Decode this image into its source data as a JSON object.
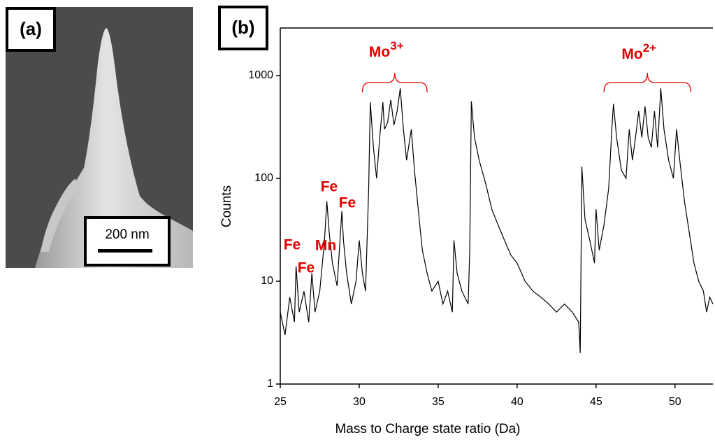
{
  "panel_a": {
    "label": "(a)",
    "scale_bar": "200 nm"
  },
  "chart_data": {
    "type": "line",
    "panel_label": "(b)",
    "x_label": "Mass to Charge state ratio (Da)",
    "y_label": "Counts",
    "log_y": true,
    "xlim": [
      25,
      52.4
    ],
    "xticks": [
      25,
      30,
      35,
      40,
      45,
      50
    ],
    "ylim": [
      1,
      2900
    ],
    "yticks": [
      1,
      10,
      100,
      1000
    ],
    "annotations": [
      {
        "text": "Mo",
        "sup": "3+"
      },
      {
        "text": "Mo",
        "sup": "2+"
      }
    ],
    "peak_labels": [
      "Fe",
      "Fe",
      "Mn",
      "Fe",
      "Fe"
    ],
    "x": [
      25.0,
      25.3,
      25.6,
      25.9,
      26.0,
      26.2,
      26.5,
      26.8,
      27.0,
      27.2,
      27.5,
      27.8,
      27.95,
      28.1,
      28.3,
      28.6,
      28.9,
      29.0,
      29.2,
      29.5,
      29.8,
      30.0,
      30.2,
      30.4,
      30.6,
      30.7,
      30.9,
      31.1,
      31.3,
      31.5,
      31.6,
      31.8,
      32.0,
      32.2,
      32.4,
      32.6,
      32.8,
      33.0,
      33.3,
      33.5,
      33.8,
      34.0,
      34.3,
      34.6,
      35.0,
      35.3,
      35.6,
      35.9,
      36.0,
      36.2,
      36.5,
      36.9,
      37.0,
      37.1,
      37.3,
      37.6,
      38.0,
      38.4,
      38.8,
      39.2,
      39.6,
      40.0,
      40.5,
      41.0,
      41.5,
      42.0,
      42.5,
      43.0,
      43.5,
      43.9,
      44.0,
      44.1,
      44.3,
      44.6,
      44.9,
      45.0,
      45.2,
      45.5,
      45.8,
      46.0,
      46.1,
      46.3,
      46.6,
      46.9,
      47.1,
      47.3,
      47.5,
      47.7,
      47.9,
      48.1,
      48.3,
      48.5,
      48.7,
      48.9,
      49.1,
      49.3,
      49.6,
      49.9,
      50.1,
      50.3,
      50.6,
      50.9,
      51.2,
      51.5,
      51.8,
      52.0,
      52.2,
      52.4
    ],
    "series": [
      {
        "name": "Counts",
        "color": "#000000",
        "values": [
          5,
          3,
          7,
          4,
          14,
          5,
          8,
          4,
          12,
          5,
          8,
          25,
          60,
          30,
          15,
          9,
          48,
          25,
          12,
          6,
          10,
          25,
          12,
          8,
          80,
          550,
          200,
          100,
          250,
          550,
          300,
          350,
          580,
          330,
          450,
          750,
          300,
          150,
          300,
          120,
          40,
          20,
          12,
          8,
          10,
          6,
          8,
          5,
          25,
          12,
          8,
          6,
          20,
          560,
          250,
          150,
          90,
          50,
          35,
          25,
          18,
          15,
          10,
          8,
          7,
          6,
          5,
          6,
          5,
          4,
          2,
          130,
          40,
          25,
          15,
          50,
          20,
          35,
          80,
          300,
          530,
          250,
          120,
          100,
          300,
          150,
          250,
          450,
          250,
          500,
          250,
          200,
          450,
          200,
          750,
          300,
          150,
          100,
          300,
          150,
          60,
          30,
          15,
          10,
          8,
          5,
          7,
          6
        ]
      }
    ]
  }
}
